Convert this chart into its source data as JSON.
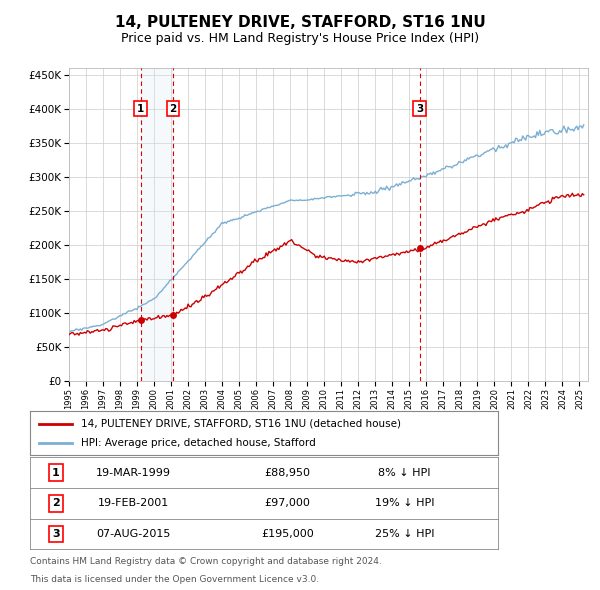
{
  "title": "14, PULTENEY DRIVE, STAFFORD, ST16 1NU",
  "subtitle": "Price paid vs. HM Land Registry's House Price Index (HPI)",
  "title_fontsize": 11,
  "subtitle_fontsize": 9,
  "ylim": [
    0,
    460000
  ],
  "background_color": "#ffffff",
  "plot_bg_color": "#ffffff",
  "grid_color": "#cccccc",
  "sale_color": "#cc0000",
  "hpi_color": "#7bafd4",
  "hpi_fill_color": "#dce8f5",
  "vline_color": "#dd0000",
  "vband_color": "#ddeeff",
  "purchases": [
    {
      "date_num": 1999.21,
      "price": 88950,
      "label": "1",
      "date_str": "19-MAR-1999",
      "pct": "8%"
    },
    {
      "date_num": 2001.12,
      "price": 97000,
      "label": "2",
      "date_str": "19-FEB-2001",
      "pct": "19%"
    },
    {
      "date_num": 2015.6,
      "price": 195000,
      "label": "3",
      "date_str": "07-AUG-2015",
      "pct": "25%"
    }
  ],
  "legend_sale_label": "14, PULTENEY DRIVE, STAFFORD, ST16 1NU (detached house)",
  "legend_hpi_label": "HPI: Average price, detached house, Stafford",
  "footer1": "Contains HM Land Registry data © Crown copyright and database right 2024.",
  "footer2": "This data is licensed under the Open Government Licence v3.0."
}
